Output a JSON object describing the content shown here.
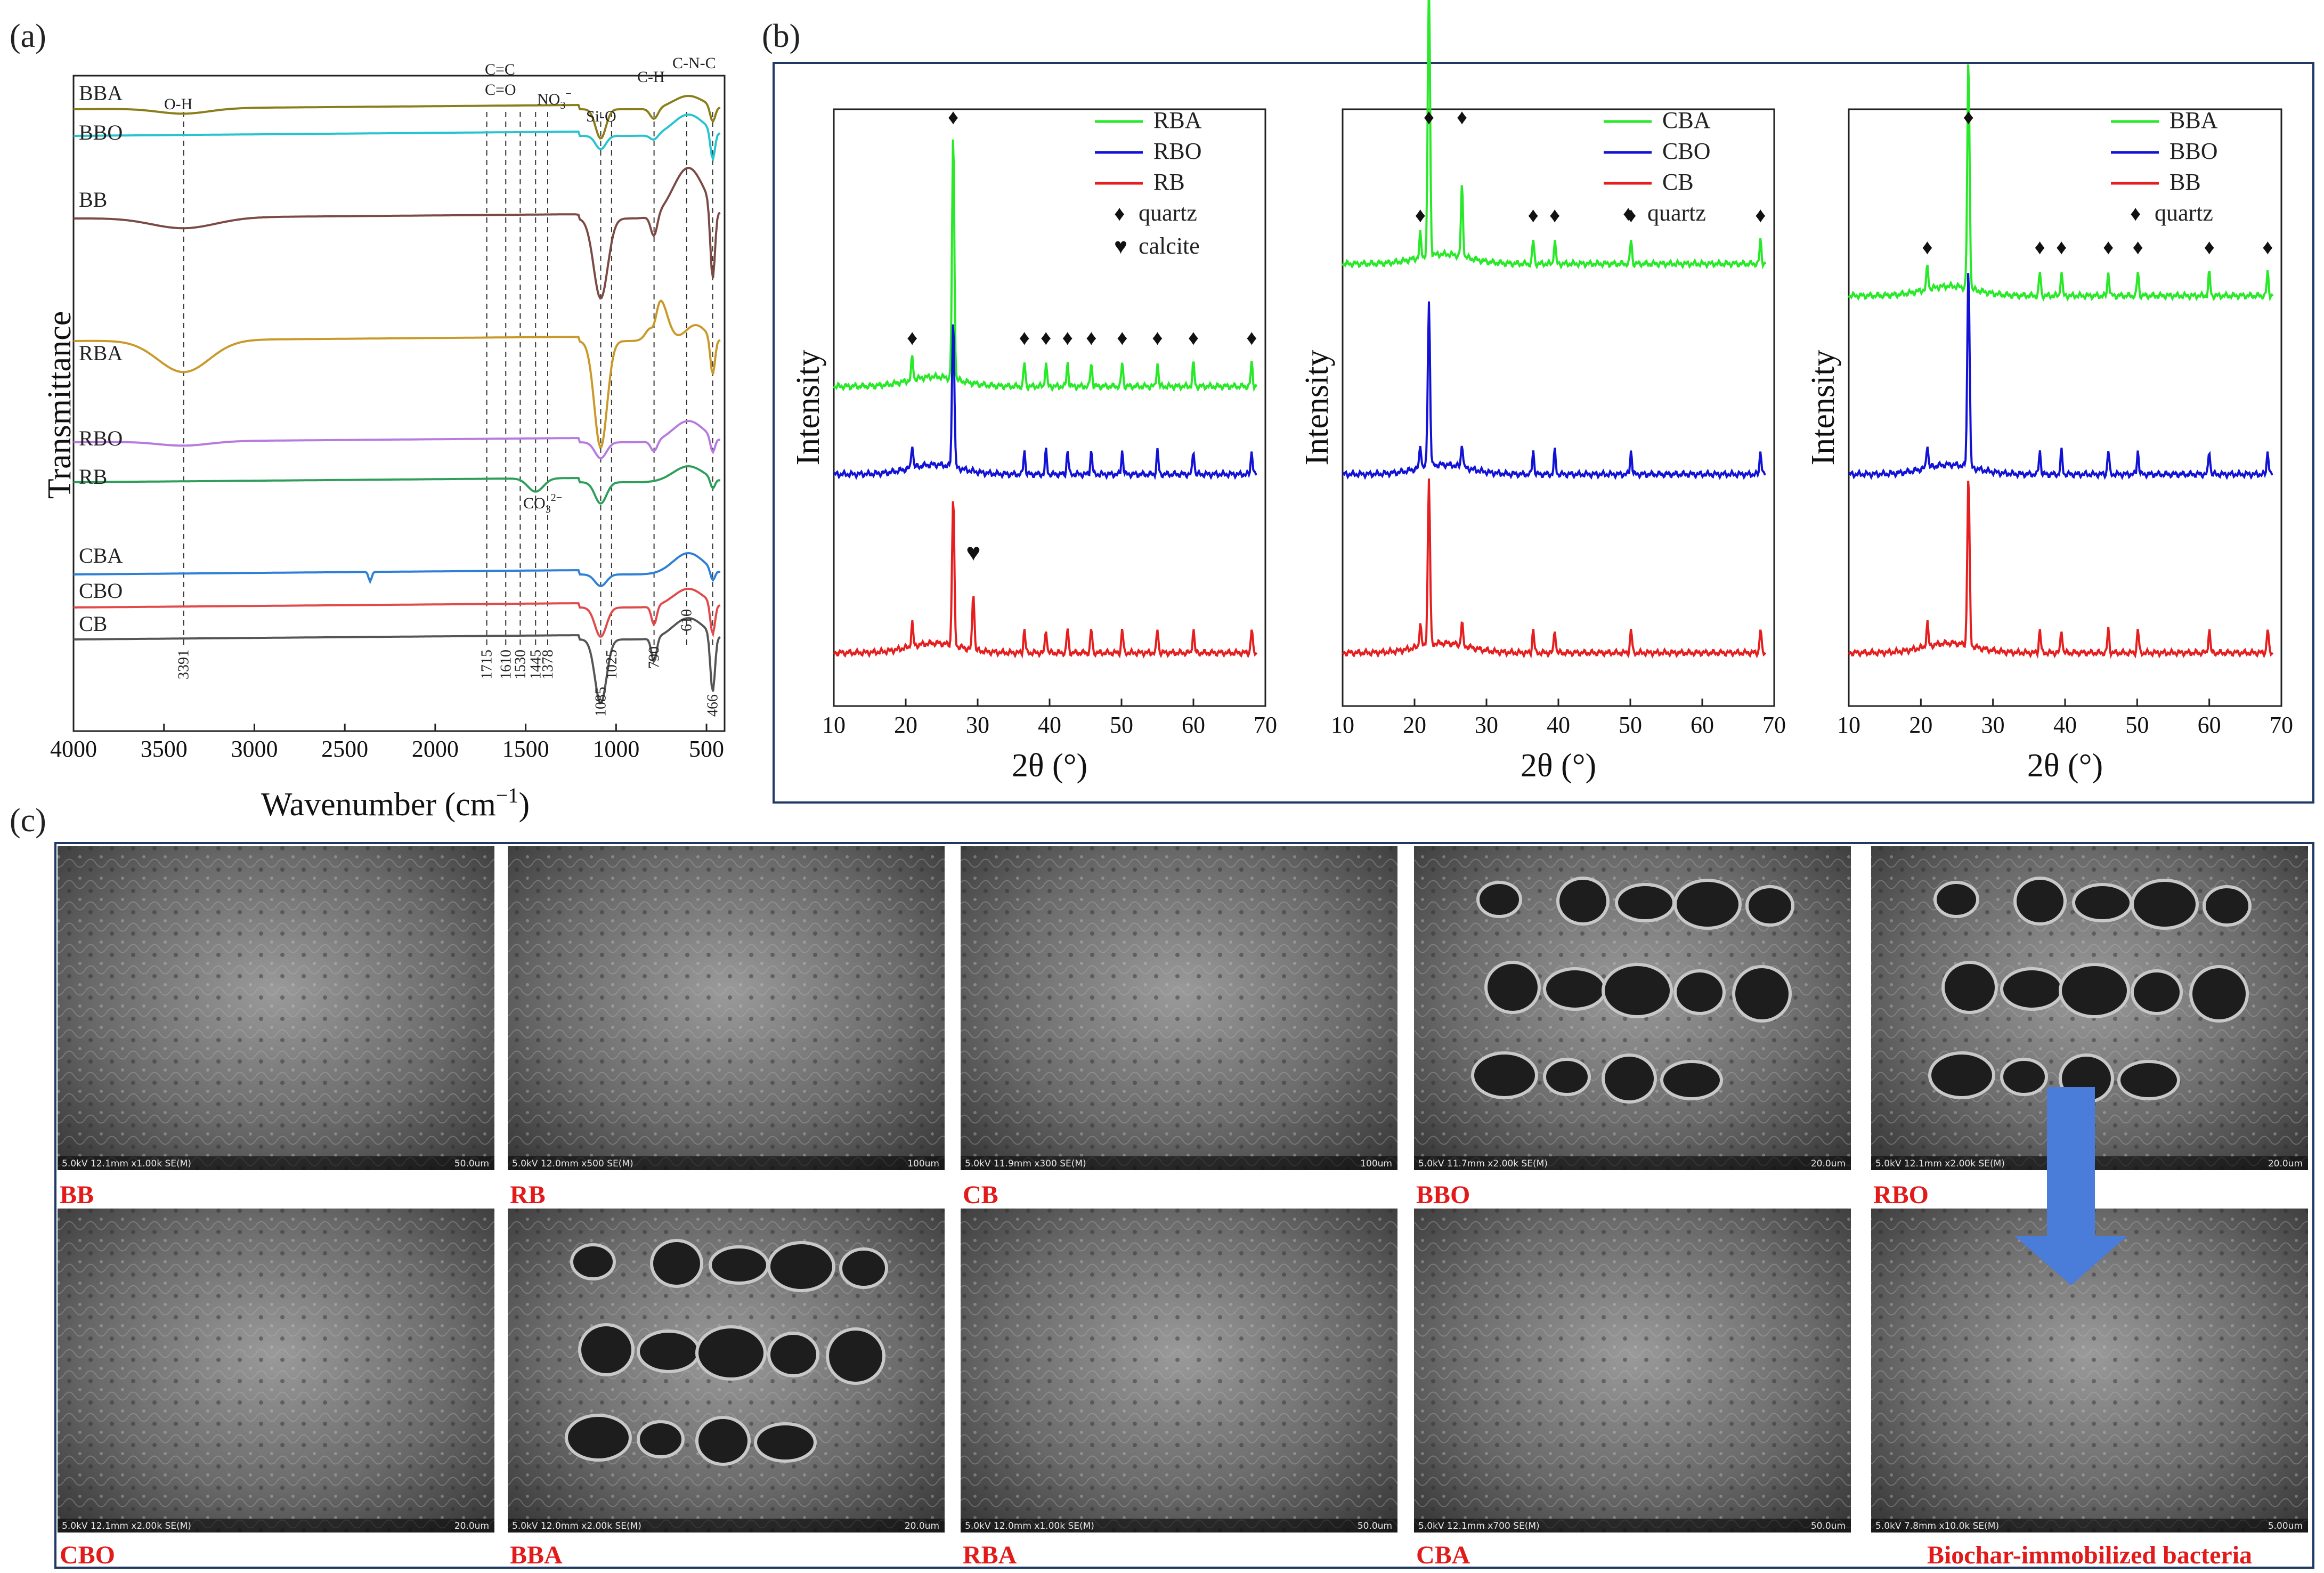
{
  "panels": {
    "a": "(a)",
    "b": "(b)",
    "c": "(c)"
  },
  "colors": {
    "frame": "#1f3864",
    "green": "#27e927",
    "blue": "#1212d6",
    "red": "#e51f1f",
    "BBA": "#8a7e1b",
    "BBO": "#27c4cf",
    "BB": "#7b4a45",
    "RBA": "#c99a2a",
    "RBO": "#b57be0",
    "RB": "#2e9e5a",
    "CBA": "#2e7fd6",
    "CBO": "#e04a4a",
    "CB": "#555555",
    "sem_label": "#e21a1a",
    "arrow": "#4a7cd9"
  },
  "ftir": {
    "ylabel": "Transmittance",
    "xlabel": "Wavenumber (cm",
    "xlabel_sup": "−1",
    "xlabel_end": ")",
    "xticks": [
      "4000",
      "3500",
      "3000",
      "2500",
      "2000",
      "1500",
      "1000",
      "500"
    ],
    "series": [
      "BBA",
      "BBO",
      "BB",
      "RBA",
      "RBO",
      "RB",
      "CBA",
      "CBO",
      "CB"
    ],
    "group_labels": {
      "oh": "O-H",
      "cc": "C=C",
      "co": "C=O",
      "no3": "NO",
      "no3_sub": "3",
      "no3_sup": "−",
      "sio": "Si-O",
      "ch": "C-H",
      "cnc": "C-N-C",
      "co3": "CO",
      "co3_sub": "3",
      "co3_sup": "2−"
    },
    "peak_labels": [
      "3391",
      "1715",
      "1610",
      "1530",
      "1445",
      "1378",
      "1085",
      "1025",
      "790",
      "610",
      "466"
    ]
  },
  "chart_data": [
    {
      "type": "line",
      "title": "",
      "xlabel": "Wavenumber (cm−1)",
      "ylabel": "Transmittance",
      "xlim": [
        4000,
        400
      ],
      "series_order_top_to_bottom": [
        "BBA",
        "BBO",
        "BB",
        "RBA",
        "RBO",
        "RB",
        "CBA",
        "CBO",
        "CB"
      ],
      "marked_peaks_cm-1": [
        3391,
        1715,
        1610,
        1530,
        1445,
        1378,
        1085,
        1025,
        790,
        610,
        466
      ],
      "assignments": {
        "O-H": 3391,
        "C=C": 1610,
        "C=O": 1715,
        "NO3−": 1378,
        "Si-O": 1085,
        "C-H": 790,
        "C-N-C": 610,
        "CO3 2−": 1445
      }
    },
    {
      "type": "line",
      "xlabel": "2θ (°)",
      "ylabel": "Intensity",
      "xlim": [
        10,
        70
      ],
      "series": [
        {
          "name": "RBA"
        },
        {
          "name": "RBO"
        },
        {
          "name": "RB"
        }
      ],
      "quartz_peaks": [
        20.9,
        26.6,
        36.5,
        39.5,
        42.5,
        45.8,
        50.1,
        55.0,
        60.0,
        68.1
      ],
      "calcite_peaks": [
        29.4
      ]
    },
    {
      "type": "line",
      "xlabel": "2θ (°)",
      "ylabel": "Intensity",
      "xlim": [
        10,
        70
      ],
      "series": [
        {
          "name": "CBA"
        },
        {
          "name": "CBO"
        },
        {
          "name": "CB"
        }
      ],
      "quartz_peaks": [
        20.8,
        22.0,
        26.6,
        36.5,
        39.5,
        50.1,
        68.1
      ]
    },
    {
      "type": "line",
      "xlabel": "2θ (°)",
      "ylabel": "Intensity",
      "xlim": [
        10,
        70
      ],
      "series": [
        {
          "name": "BBA"
        },
        {
          "name": "BBO"
        },
        {
          "name": "BB"
        }
      ],
      "quartz_peaks": [
        20.9,
        26.6,
        36.5,
        39.5,
        46.0,
        50.1,
        60.0,
        68.1
      ]
    }
  ],
  "xrd": {
    "ylabel": "Intensity",
    "xlabel_theta": "2θ (°)",
    "xticks": [
      "10",
      "20",
      "30",
      "40",
      "50",
      "60",
      "70"
    ],
    "quartz_symbol": "♦",
    "calcite_symbol": "♥",
    "panels": [
      {
        "legend": [
          "RBA",
          "RBO",
          "RB"
        ],
        "quartz": "quartz",
        "calcite": "calcite"
      },
      {
        "legend": [
          "CBA",
          "CBO",
          "CB"
        ],
        "quartz": "quartz"
      },
      {
        "legend": [
          "BBA",
          "BBO",
          "BB"
        ],
        "quartz": "quartz"
      }
    ]
  },
  "sem": {
    "images": [
      {
        "label": "BB",
        "info": "5.0kV 12.1mm x1.00k SE(M)",
        "scale": "50.0um"
      },
      {
        "label": "RB",
        "info": "5.0kV 12.0mm x500 SE(M)",
        "scale": "100um"
      },
      {
        "label": "CB",
        "info": "5.0kV 11.9mm x300 SE(M)",
        "scale": "100um"
      },
      {
        "label": "BBO",
        "info": "5.0kV 11.7mm x2.00k SE(M)",
        "scale": "20.0um"
      },
      {
        "label": "RBO",
        "info": "5.0kV 12.1mm x2.00k SE(M)",
        "scale": "20.0um"
      },
      {
        "label": "CBO",
        "info": "5.0kV 12.1mm x2.00k SE(M)",
        "scale": "20.0um"
      },
      {
        "label": "BBA",
        "info": "5.0kV 12.0mm x2.00k SE(M)",
        "scale": "20.0um"
      },
      {
        "label": "RBA",
        "info": "5.0kV 12.0mm x1.00k SE(M)",
        "scale": "50.0um"
      },
      {
        "label": "CBA",
        "info": "5.0kV 12.1mm x700 SE(M)",
        "scale": "50.0um"
      },
      {
        "label": "Biochar-immobilized bacteria",
        "info": "5.0kV 7.8mm x10.0k SE(M)",
        "scale": "5.00um"
      }
    ]
  }
}
